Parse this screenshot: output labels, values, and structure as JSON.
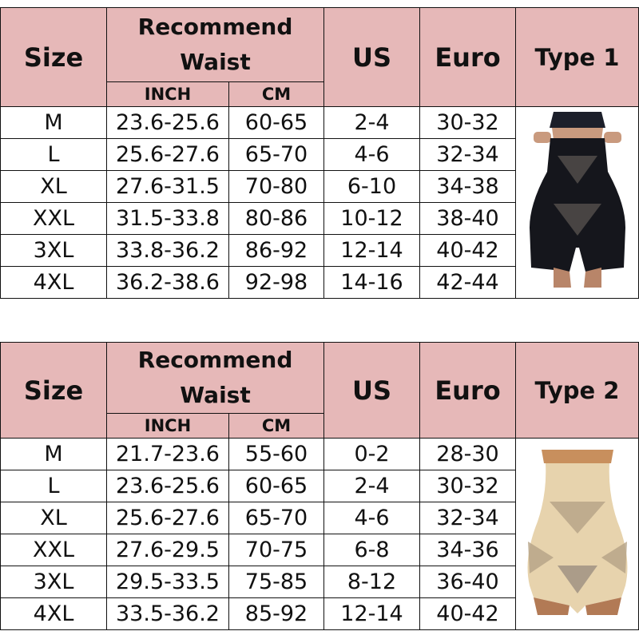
{
  "header_color": "#e6b8b8",
  "tables": [
    {
      "size_label": "Size",
      "waist_label_1": "Recommend",
      "waist_label_2": "Waist",
      "inch_label": "INCH",
      "cm_label": "CM",
      "us_label": "US",
      "euro_label": "Euro",
      "type_label": "Type 1",
      "image": "black-high-waist-shaper-shorts",
      "rows": [
        [
          "M",
          "23.6-25.6",
          "60-65",
          "2-4",
          "30-32"
        ],
        [
          "L",
          "25.6-27.6",
          "65-70",
          "4-6",
          "32-34"
        ],
        [
          "XL",
          "27.6-31.5",
          "70-80",
          "6-10",
          "34-38"
        ],
        [
          "XXL",
          "31.5-33.8",
          "80-86",
          "10-12",
          "38-40"
        ],
        [
          "3XL",
          "33.8-36.2",
          "86-92",
          "12-14",
          "40-42"
        ],
        [
          "4XL",
          "36.2-38.6",
          "92-98",
          "14-16",
          "42-44"
        ]
      ]
    },
    {
      "size_label": "Size",
      "waist_label_1": "Recommend",
      "waist_label_2": "Waist",
      "inch_label": "INCH",
      "cm_label": "CM",
      "us_label": "US",
      "euro_label": "Euro",
      "type_label": "Type 2",
      "image": "beige-high-waist-shaper-briefs",
      "rows": [
        [
          "M",
          "21.7-23.6",
          "55-60",
          "0-2",
          "28-30"
        ],
        [
          "L",
          "23.6-25.6",
          "60-65",
          "2-4",
          "30-32"
        ],
        [
          "XL",
          "25.6-27.6",
          "65-70",
          "4-6",
          "32-34"
        ],
        [
          "XXL",
          "27.6-29.5",
          "70-75",
          "6-8",
          "34-36"
        ],
        [
          "3XL",
          "29.5-33.5",
          "75-85",
          "8-12",
          "36-40"
        ],
        [
          "4XL",
          "33.5-36.2",
          "85-92",
          "12-14",
          "40-42"
        ]
      ]
    }
  ]
}
